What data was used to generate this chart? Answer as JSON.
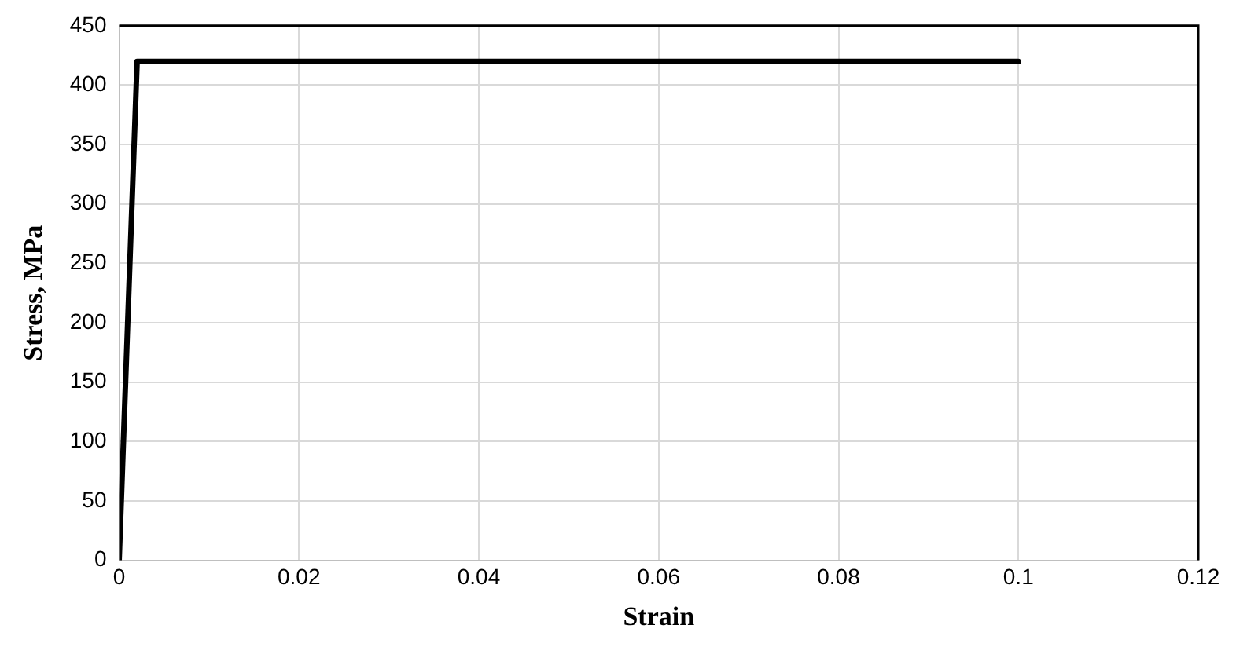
{
  "chart_data": {
    "type": "line",
    "xlabel": "Strain",
    "ylabel": "Stress, MPa",
    "series": [
      {
        "color": "#000000",
        "x": [
          0,
          0.002,
          0.1
        ],
        "values": [
          0,
          420,
          420
        ]
      }
    ],
    "xlim": [
      0,
      0.12
    ],
    "xticks": [
      0,
      0.02,
      0.04,
      0.06,
      0.08,
      0.1,
      0.12
    ],
    "ylim": [
      0,
      450
    ],
    "yticks": [
      0,
      50,
      100,
      150,
      200,
      250,
      300,
      350,
      400,
      450
    ],
    "grid": true,
    "legend": false,
    "marker": "none",
    "line_style": "solid"
  }
}
